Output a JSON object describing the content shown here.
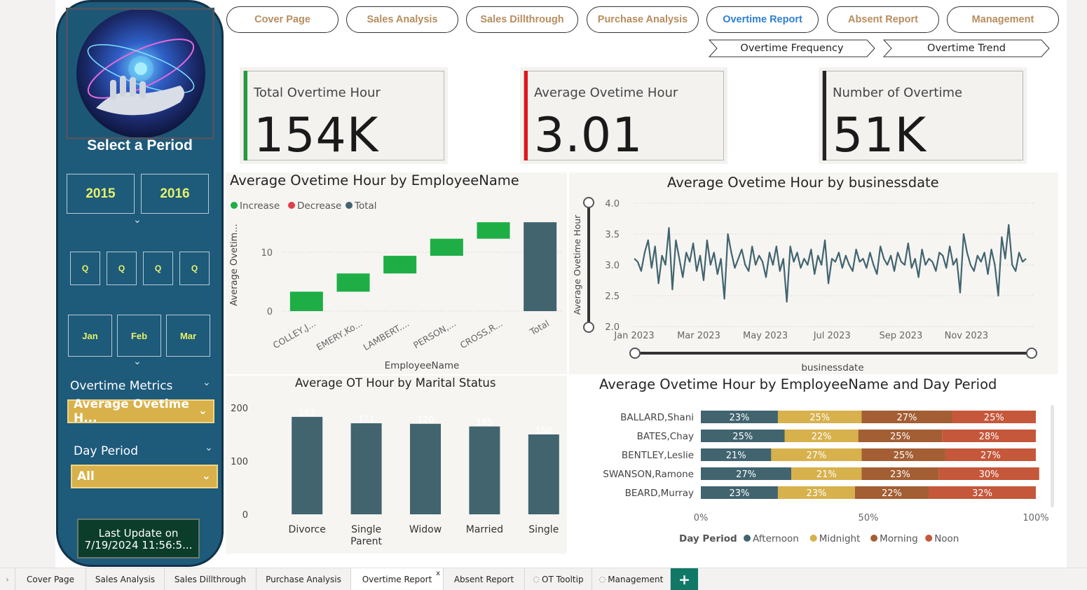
{
  "sidebar": {
    "select_period": "Select a Period",
    "years": [
      "2015",
      "2016"
    ],
    "quarters": [
      "Q",
      "Q",
      "Q",
      "Q"
    ],
    "months": [
      "Jan",
      "Feb",
      "Mar"
    ],
    "overtime_metrics_label": "Overtime Metrics",
    "overtime_metrics_value": "Average Ovetime H...",
    "day_period_label": "Day Period",
    "day_period_value": "All",
    "last_update_line1": "Last Update on",
    "last_update_line2": "7/19/2024 11:56:5..."
  },
  "nav": {
    "buttons": [
      "Cover Page",
      "Sales Analysis",
      "Sales Dillthrough",
      "Purchase Analysis",
      "Overtime Report",
      "Absent Report",
      "Management"
    ],
    "active": "Overtime Report",
    "sub_buttons": [
      "Overtime Frequency",
      "Overtime Trend"
    ]
  },
  "kpis": [
    {
      "title": "Total Overtime Hour",
      "value": "154K",
      "color": "#1f9e3a"
    },
    {
      "title": "Average Ovetime Hour",
      "value": "3.01",
      "color": "#e0161d"
    },
    {
      "title": "Number of Overtime",
      "value": "51K",
      "color": "#252423"
    }
  ],
  "colors": {
    "increase": "#1eae45",
    "decrease": "#e0404a",
    "total": "#41646f",
    "afternoon": "#41646f",
    "midnight": "#d7b14c",
    "morning": "#a35e33",
    "noon": "#c5573a",
    "sidebar": "#1e5a7a"
  },
  "waterfall": {
    "title": "Average Ovetime Hour by EmployeeName",
    "legend": [
      "Increase",
      "Decrease",
      "Total"
    ],
    "xlabel": "EmployeeName",
    "ylabel": "Average Ovetim...",
    "ticks": [
      "0",
      "10"
    ]
  },
  "line": {
    "title": "Average Ovetime Hour by businessdate",
    "xlabel": "businessdate",
    "ylabel": "Average Ovetime Hour",
    "yticks": [
      "4.0",
      "3.5",
      "3.0",
      "2.5",
      "2.0"
    ],
    "xticks": [
      "Jan 2023",
      "Mar 2023",
      "May 2023",
      "Jul 2023",
      "Sep 2023",
      "Nov 2023"
    ]
  },
  "marital": {
    "title": "Average OT Hour by Marital Status",
    "yticks": [
      "200",
      "100",
      "0"
    ]
  },
  "stacked": {
    "title": "Average Ovetime Hour by EmployeeName and Day Period",
    "xticks": [
      "0%",
      "50%",
      "100%"
    ],
    "legend_title": "Day Period",
    "legend": [
      "Afternoon",
      "Midnight",
      "Morning",
      "Noon"
    ]
  },
  "tabs": [
    "Cover Page",
    "Sales Analysis",
    "Sales Dillthrough",
    "Purchase Analysis",
    "Overtime Report",
    "Absent Report",
    "OT Tooltip",
    "Management"
  ],
  "active_tab": "Overtime Report",
  "add_tab": "+",
  "close_tab": "x",
  "chart_data": [
    {
      "type": "bar",
      "subtype": "waterfall",
      "title": "Average Ovetime Hour by EmployeeName",
      "xlabel": "EmployeeName",
      "ylabel": "Average Ovetim...",
      "categories": [
        "COLLEY,J...",
        "EMERY,Ko...",
        "LAMBERT....",
        "PERSON,...",
        "CROSS,R...",
        "Total"
      ],
      "values": [
        3.3,
        3.1,
        3.0,
        2.9,
        2.8,
        15.1
      ],
      "ylim": [
        0,
        16
      ],
      "legend": [
        "Increase",
        "Decrease",
        "Total"
      ],
      "legend_position": "top-left"
    },
    {
      "type": "line",
      "title": "Average Ovetime Hour by businessdate",
      "xlabel": "businessdate",
      "ylabel": "Average Ovetime Hour",
      "x_range": [
        "2023-01-01",
        "2023-12-31"
      ],
      "ylim": [
        2.0,
        4.0
      ],
      "series": [
        {
          "values": [
            3.1,
            3.05,
            2.9,
            3.2,
            3.4,
            2.95,
            3.3,
            2.7,
            3.15,
            3.0,
            3.6,
            2.6,
            3.4,
            3.1,
            2.8,
            3.2,
            3.05,
            3.35,
            2.9,
            3.15,
            2.75,
            3.4,
            3.0,
            3.2,
            2.85,
            3.1,
            2.45,
            3.5,
            3.2,
            2.95,
            3.1,
            3.25,
            3.0,
            2.9,
            3.3,
            3.0,
            3.15,
            3.05,
            2.8,
            3.2,
            3.0,
            3.3,
            2.9,
            3.1,
            2.4,
            3.3,
            3.05,
            3.2,
            2.95,
            3.1,
            3.0,
            3.25,
            2.85,
            3.15,
            3.0,
            3.4,
            2.7,
            3.1,
            3.05,
            3.2,
            2.95,
            3.15,
            3.0,
            2.9,
            3.25,
            3.05,
            3.1,
            2.95,
            3.2,
            3.0,
            2.85,
            3.3,
            3.1,
            3.0,
            3.15,
            2.9,
            3.2,
            3.05,
            3.0,
            3.35,
            2.95,
            3.1,
            2.8,
            3.25,
            3.0,
            3.1,
            3.05,
            2.9,
            3.2,
            3.15,
            2.95,
            3.3,
            3.0,
            3.1,
            2.55,
            3.5,
            3.2,
            3.0,
            2.9,
            3.15,
            3.05,
            3.2,
            2.85,
            3.25,
            3.0,
            2.5,
            3.45,
            3.1,
            3.65,
            3.0,
            2.9,
            3.2,
            3.05,
            3.1
          ]
        }
      ]
    },
    {
      "type": "bar",
      "title": "Average OT Hour by Marital Status",
      "categories": [
        "Divorce",
        "Single Parent",
        "Widow",
        "Married",
        "Single"
      ],
      "values": [
        183,
        171,
        170,
        165,
        150
      ],
      "ylim": [
        0,
        200
      ]
    },
    {
      "type": "bar",
      "subtype": "stacked-100-horizontal",
      "title": "Average Ovetime Hour by EmployeeName and Day Period",
      "categories": [
        "BALLARD,Shani",
        "BATES,Chay",
        "BENTLEY,Leslie",
        "SWANSON,Ramone",
        "BEARD,Murray"
      ],
      "series": [
        {
          "name": "Afternoon",
          "values": [
            23,
            25,
            21,
            27,
            23
          ]
        },
        {
          "name": "Midnight",
          "values": [
            25,
            22,
            27,
            21,
            23
          ]
        },
        {
          "name": "Morning",
          "values": [
            27,
            25,
            25,
            23,
            22
          ]
        },
        {
          "name": "Noon",
          "values": [
            25,
            28,
            27,
            30,
            32
          ]
        }
      ],
      "xlim": [
        0,
        100
      ],
      "legend_position": "bottom"
    }
  ]
}
